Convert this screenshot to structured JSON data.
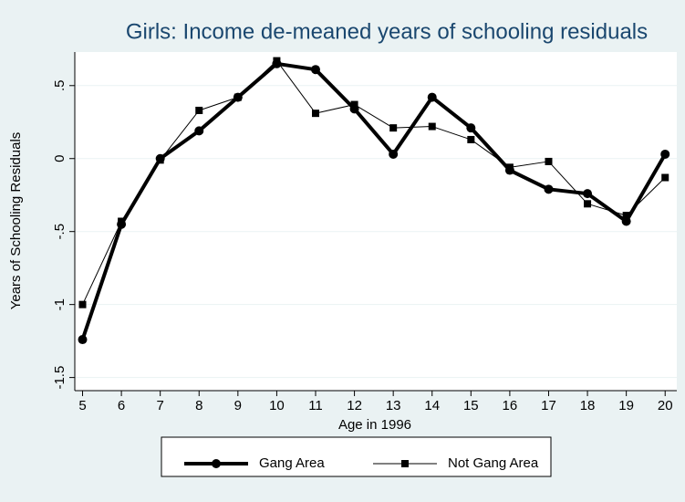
{
  "chart_data": {
    "type": "line",
    "title": "Girls: Income de-meaned years of schooling residuals",
    "x_label": "Age in 1996",
    "y_label": "Years of Schooling Residuals",
    "x": [
      5,
      6,
      7,
      8,
      9,
      10,
      11,
      12,
      13,
      14,
      15,
      16,
      17,
      18,
      19,
      20
    ],
    "series": [
      {
        "name": "Gang Area",
        "color": "#000000",
        "marker": "circle",
        "line_width": 4,
        "values": [
          -1.24,
          -0.45,
          0.0,
          0.19,
          0.42,
          0.65,
          0.61,
          0.34,
          0.03,
          0.42,
          0.21,
          -0.08,
          -0.21,
          -0.24,
          -0.43,
          0.03
        ]
      },
      {
        "name": "Not Gang Area",
        "color": "#000000",
        "marker": "square",
        "line_width": 1,
        "values": [
          -1.0,
          -0.43,
          -0.01,
          0.33,
          0.42,
          0.67,
          0.31,
          0.37,
          0.21,
          0.22,
          0.13,
          -0.06,
          -0.02,
          -0.31,
          -0.39,
          -0.13
        ]
      }
    ],
    "xlim": [
      4.8,
      20.3
    ],
    "ylim": [
      -1.59,
      0.73
    ],
    "xticks": [
      5,
      6,
      7,
      8,
      9,
      10,
      11,
      12,
      13,
      14,
      15,
      16,
      17,
      18,
      19,
      20
    ],
    "yticks": [
      {
        "value": 0.5,
        "label": ".5"
      },
      0,
      {
        "value": -0.5,
        "label": "-.5"
      },
      -1,
      -1.5
    ],
    "grid": true,
    "legend": "bottom"
  }
}
